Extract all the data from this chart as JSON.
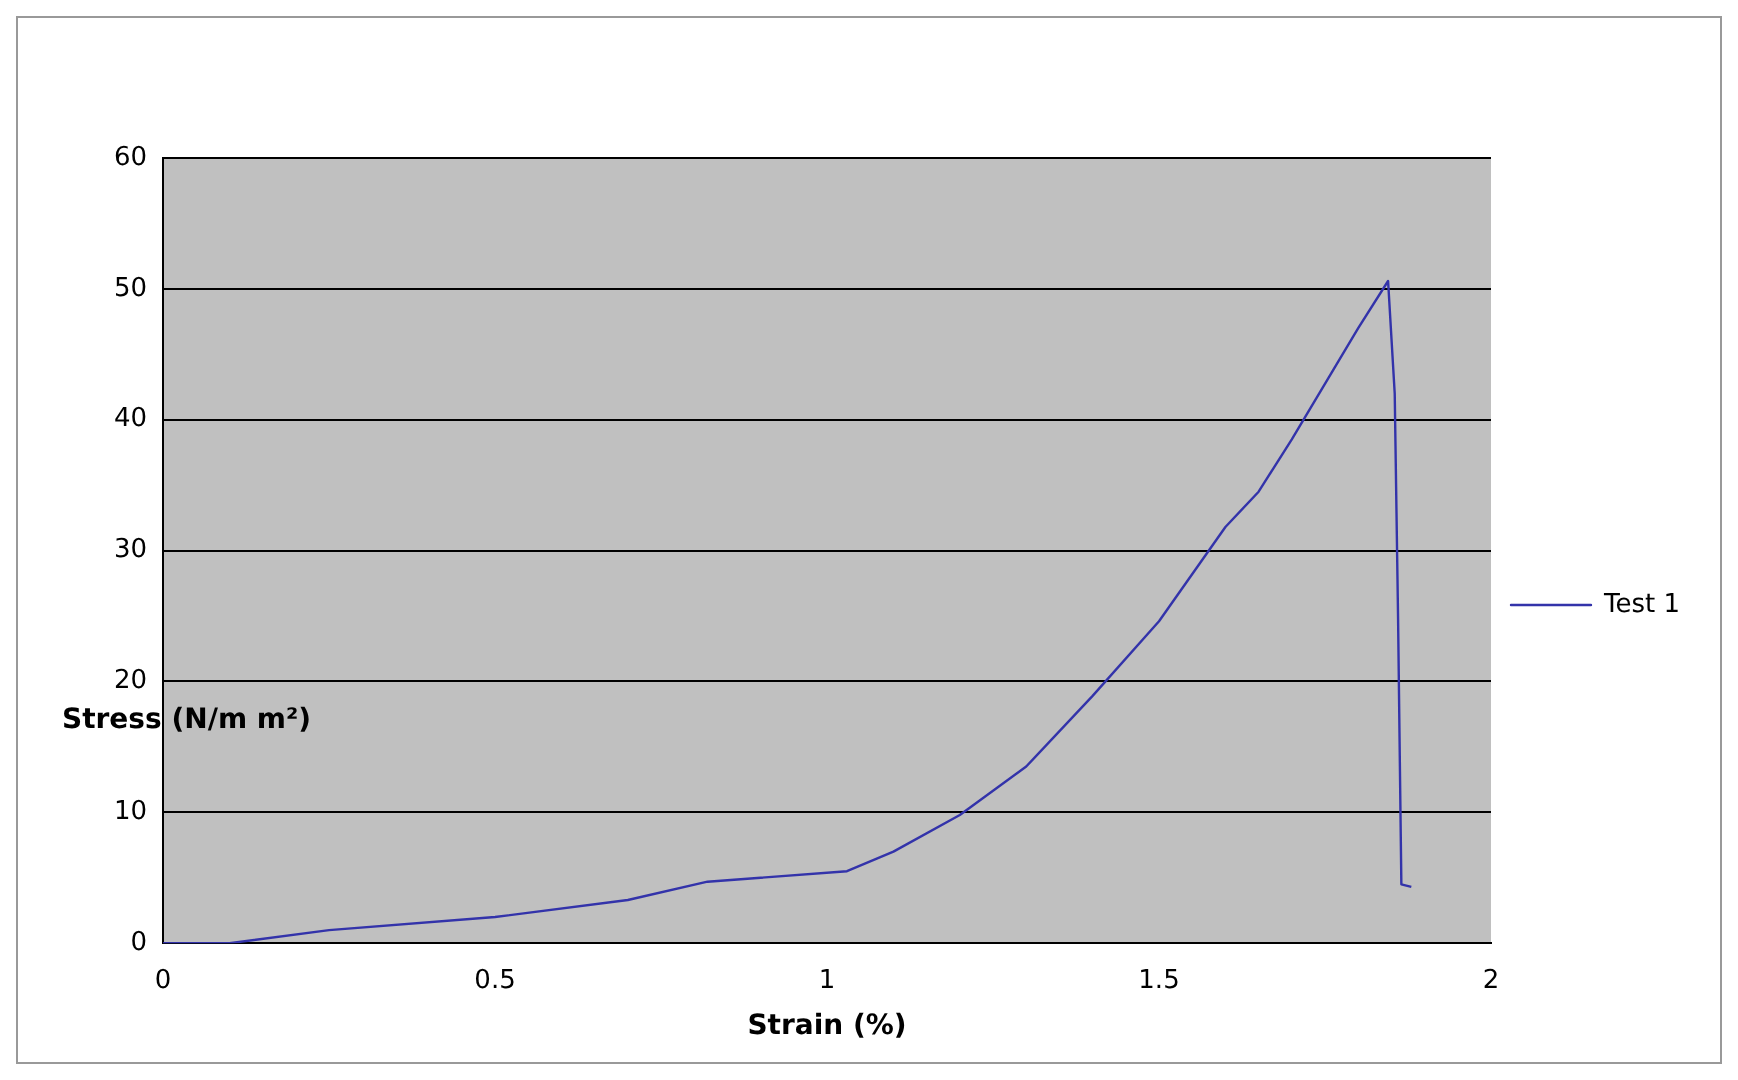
{
  "chart_data": {
    "type": "line",
    "xlabel": "Strain (%)",
    "ylabel": "Stress (N/m m²)",
    "series": [
      {
        "name": "Test 1",
        "color": "#3333aa",
        "x": [
          0,
          0.1,
          0.25,
          0.5,
          0.7,
          0.82,
          0.9,
          1.03,
          1.1,
          1.2,
          1.3,
          1.4,
          1.5,
          1.6,
          1.65,
          1.7,
          1.8,
          1.845,
          1.855,
          1.86,
          1.865,
          1.88
        ],
        "values": [
          0,
          0,
          1,
          2,
          3.3,
          4.7,
          5,
          5.5,
          7,
          9.8,
          13.5,
          18.9,
          24.6,
          31.8,
          34.5,
          38.5,
          47,
          50.6,
          42,
          25,
          4.5,
          4.3
        ]
      }
    ],
    "xlim": [
      0,
      2
    ],
    "xticks": [
      0,
      0.5,
      1,
      1.5,
      2
    ],
    "ylim": [
      0,
      60
    ],
    "yticks": [
      0,
      10,
      20,
      30,
      40,
      50,
      60
    ],
    "grid": "y",
    "legend": "right",
    "marker": "none",
    "line_style": "solid"
  }
}
